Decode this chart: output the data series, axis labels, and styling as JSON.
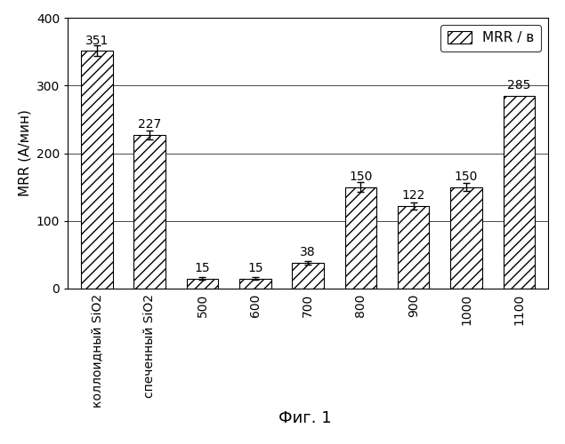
{
  "categories": [
    "коллоидный SiO2",
    "спеченный SiO2",
    "500",
    "600",
    "700",
    "800",
    "900",
    "1000",
    "1100"
  ],
  "values": [
    351,
    227,
    15,
    15,
    38,
    150,
    122,
    150,
    285
  ],
  "errors": [
    8,
    7,
    2,
    2,
    3,
    7,
    5,
    6,
    0
  ],
  "hatch": "///",
  "ylabel": "MRR (А/мин)",
  "ylim": [
    0,
    400
  ],
  "yticks": [
    0,
    100,
    200,
    300,
    400
  ],
  "legend_label": "MRR / в",
  "fig_label": "Фиг. 1",
  "label_fontsize": 11,
  "tick_fontsize": 10,
  "annotation_fontsize": 10,
  "figlabel_fontsize": 13
}
